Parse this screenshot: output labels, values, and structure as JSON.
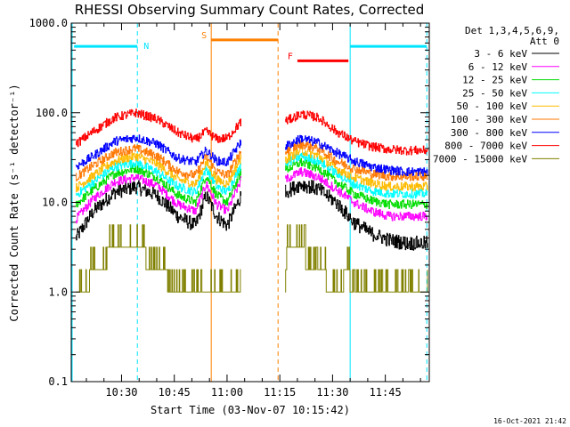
{
  "chart_data": {
    "type": "line",
    "title": "RHESSI Observing Summary Count Rates, Corrected",
    "xlabel": "Start Time (03-Nov-07 10:15:42)",
    "ylabel": "Corrected Count Rate (s⁻¹ detector⁻¹)",
    "y_scale": "log",
    "ylim": [
      0.1,
      1000.0
    ],
    "y_ticks": [
      {
        "value": 0.1,
        "label": "0.1"
      },
      {
        "value": 1.0,
        "label": "1.0"
      },
      {
        "value": 10.0,
        "label": "10.0"
      },
      {
        "value": 100.0,
        "label": "100.0"
      },
      {
        "value": 1000.0,
        "label": "1000.0"
      }
    ],
    "xlim_minutes": [
      615.7,
      717.5
    ],
    "x_ticks": [
      {
        "value": 630,
        "label": "10:30"
      },
      {
        "value": 645,
        "label": "10:45"
      },
      {
        "value": 660,
        "label": "11:00"
      },
      {
        "value": 675,
        "label": "11:15"
      },
      {
        "value": 690,
        "label": "11:30"
      },
      {
        "value": 705,
        "label": "11:45"
      }
    ],
    "legend_header": [
      "Det 1,3,4,5,6,9,",
      "Att 0"
    ],
    "legend_position": "top-right",
    "series": [
      {
        "name": "3 - 6 keV",
        "color": "#000000"
      },
      {
        "name": "6 - 12 keV",
        "color": "#ff00ff"
      },
      {
        "name": "12 - 25 keV",
        "color": "#00dd00"
      },
      {
        "name": "25 - 50 keV",
        "color": "#00ffff"
      },
      {
        "name": "50 - 100 keV",
        "color": "#ffbb00"
      },
      {
        "name": "100 - 300 keV",
        "color": "#ff7700"
      },
      {
        "name": "300 - 800 keV",
        "color": "#0000ff"
      },
      {
        "name": "800 - 7000 keV",
        "color": "#ff0000"
      },
      {
        "name": "7000 - 15000 keV",
        "color": "#808000"
      }
    ],
    "segments_minutes": [
      [
        616.5,
        664.3
      ],
      [
        676.5,
        717.0
      ]
    ],
    "series_points": [
      {
        "x": [
          617,
          622,
          628,
          634,
          640,
          646,
          651,
          654,
          657,
          660,
          664
        ],
        "y": [
          4.0,
          8.0,
          13.0,
          15.0,
          12.0,
          7.0,
          5.5,
          12.0,
          7.0,
          5.5,
          12.0
        ]
      },
      {
        "x": [
          617,
          622,
          628,
          634,
          640,
          646,
          651,
          654,
          657,
          660,
          664
        ],
        "y": [
          6.5,
          11.0,
          17.0,
          19.0,
          15.5,
          9.5,
          8.0,
          16.0,
          9.5,
          8.0,
          18.0
        ]
      },
      {
        "x": [
          617,
          622,
          628,
          634,
          640,
          646,
          651,
          654,
          657,
          660,
          664
        ],
        "y": [
          9.5,
          14.0,
          21.0,
          24.0,
          19.0,
          12.0,
          10.0,
          20.0,
          12.0,
          10.0,
          22.0
        ]
      },
      {
        "x": [
          617,
          622,
          628,
          634,
          640,
          646,
          651,
          654,
          657,
          660,
          664
        ],
        "y": [
          12.0,
          17.0,
          25.0,
          28.0,
          22.0,
          15.0,
          13.0,
          24.0,
          15.0,
          13.0,
          27.0
        ]
      },
      {
        "x": [
          617,
          622,
          628,
          634,
          640,
          646,
          651,
          654,
          657,
          660,
          664
        ],
        "y": [
          14.5,
          20.0,
          29.0,
          33.0,
          27.0,
          18.0,
          16.0,
          28.0,
          18.0,
          16.0,
          32.0
        ]
      },
      {
        "x": [
          617,
          622,
          628,
          634,
          640,
          646,
          651,
          654,
          657,
          660,
          664
        ],
        "y": [
          19.0,
          26.0,
          36.0,
          40.0,
          33.0,
          22.0,
          20.0,
          33.0,
          22.0,
          20.0,
          38.0
        ]
      },
      {
        "x": [
          617,
          622,
          628,
          634,
          640,
          646,
          651,
          654,
          657,
          660,
          664
        ],
        "y": [
          25.0,
          33.0,
          48.0,
          53.0,
          45.0,
          31.0,
          28.0,
          38.0,
          29.0,
          28.0,
          48.0
        ]
      },
      {
        "x": [
          617,
          622,
          628,
          634,
          640,
          646,
          651,
          654,
          657,
          660,
          664
        ],
        "y": [
          45.0,
          62.0,
          88.0,
          100.0,
          85.0,
          60.0,
          50.0,
          62.0,
          51.0,
          52.0,
          80.0
        ]
      },
      {
        "x": [
          617,
          620,
          622,
          625,
          627,
          633,
          636,
          640,
          645,
          664
        ],
        "y": [
          1.0,
          1.0,
          2.0,
          2.0,
          3.0,
          3.5,
          2.5,
          2.0,
          1.0,
          1.0
        ]
      },
      {
        "x": [
          676.5,
          681,
          686,
          691,
          696,
          701,
          706,
          711,
          717
        ],
        "y": [
          13.0,
          16.0,
          14.0,
          10.0,
          6.0,
          4.5,
          3.8,
          3.5,
          3.5
        ]
      },
      {
        "x": [
          676.5,
          681,
          686,
          691,
          696,
          701,
          706,
          711,
          717
        ],
        "y": [
          18.0,
          22.0,
          19.0,
          14.0,
          10.0,
          8.0,
          7.0,
          7.0,
          7.0
        ]
      },
      {
        "x": [
          676.5,
          681,
          686,
          691,
          696,
          701,
          706,
          711,
          717
        ],
        "y": [
          23.0,
          28.0,
          24.0,
          17.0,
          12.5,
          10.5,
          9.5,
          9.5,
          9.5
        ]
      },
      {
        "x": [
          676.5,
          681,
          686,
          691,
          696,
          701,
          706,
          711,
          717
        ],
        "y": [
          27.0,
          33.0,
          29.0,
          21.0,
          16.0,
          13.5,
          12.5,
          12.5,
          12.5
        ]
      },
      {
        "x": [
          676.5,
          681,
          686,
          691,
          696,
          701,
          706,
          711,
          717
        ],
        "y": [
          30.0,
          38.0,
          33.0,
          24.0,
          19.0,
          16.5,
          15.0,
          15.0,
          15.0
        ]
      },
      {
        "x": [
          676.5,
          681,
          686,
          691,
          696,
          701,
          706,
          711,
          717
        ],
        "y": [
          37.0,
          45.0,
          40.0,
          29.0,
          24.0,
          21.0,
          19.5,
          19.5,
          19.5
        ]
      },
      {
        "x": [
          676.5,
          681,
          686,
          691,
          696,
          701,
          706,
          711,
          717
        ],
        "y": [
          42.0,
          52.0,
          46.0,
          36.0,
          29.0,
          25.0,
          23.0,
          22.0,
          22.0
        ]
      },
      {
        "x": [
          676.5,
          681,
          686,
          691,
          696,
          701,
          706,
          711,
          717
        ],
        "y": [
          80.0,
          97.0,
          88.0,
          62.0,
          48.0,
          42.0,
          39.0,
          38.0,
          38.0
        ]
      },
      {
        "x": [
          676.5,
          677,
          680,
          684,
          687,
          691,
          694,
          697,
          717
        ],
        "y": [
          1.0,
          3.0,
          3.0,
          2.0,
          1.5,
          1.0,
          1.5,
          1.0,
          1.0
        ]
      }
    ],
    "series_index_map": [
      0,
      1,
      2,
      3,
      4,
      5,
      6,
      7,
      8,
      0,
      1,
      2,
      3,
      4,
      5,
      6,
      7,
      8
    ],
    "annotations": [
      {
        "label": "N",
        "color": "#00e5ff",
        "bar_minutes": [
          616.5,
          634.5
        ],
        "bar_value": 550,
        "dashed_line_minutes": 634.5
      },
      {
        "label": "S",
        "color": "#ff8000",
        "bar_minutes": [
          655.5,
          674.5
        ],
        "bar_value": 650,
        "solid_line_minutes": 655.5,
        "dashed_line_minutes": 674.5
      },
      {
        "label": "F",
        "color": "#ff0000",
        "bar_minutes": [
          680,
          694.5
        ],
        "bar_value": 380
      },
      {
        "label": "",
        "color": "#00e5ff",
        "bar_minutes": [
          695,
          716.8
        ],
        "bar_value": 550,
        "solid_line_minutes": 695,
        "dashed_line_minutes": 716.8
      }
    ],
    "footer": "16-Oct-2021 21:42"
  }
}
